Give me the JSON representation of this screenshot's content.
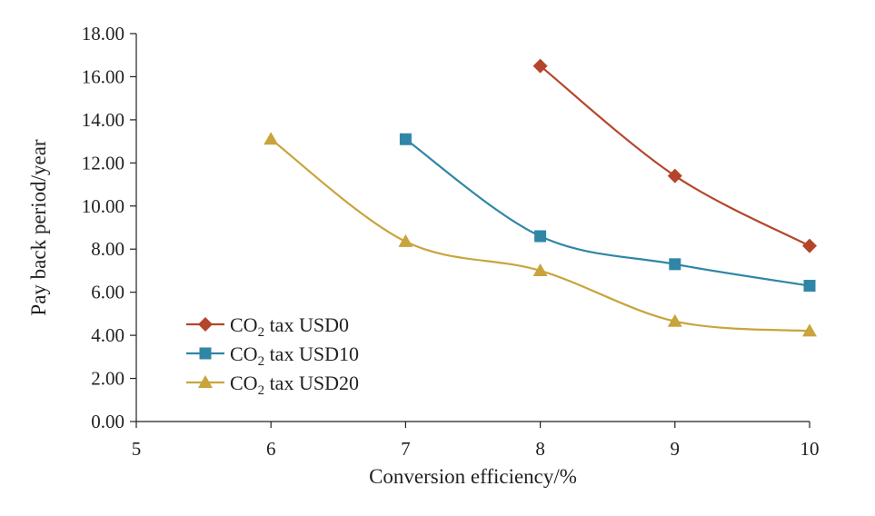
{
  "chart_data": {
    "type": "line",
    "title": "",
    "xlabel": "Conversion efficiency/%",
    "ylabel": "Pay back period/year",
    "xlim": [
      5,
      10
    ],
    "ylim": [
      0,
      18
    ],
    "x_ticks": [
      "5",
      "6",
      "7",
      "8",
      "9",
      "10"
    ],
    "y_ticks": [
      "0.00",
      "2.00",
      "4.00",
      "6.00",
      "8.00",
      "10.00",
      "12.00",
      "14.00",
      "16.00",
      "18.00"
    ],
    "legend_position": "lower-left",
    "series": [
      {
        "name": "CO2 tax USD0",
        "legend_prefix": "CO",
        "legend_sub": "2",
        "legend_suffix": " tax USD0",
        "color": "#b5452a",
        "marker": "diamond",
        "x": [
          8,
          9,
          10
        ],
        "values": [
          16.5,
          11.4,
          8.15
        ]
      },
      {
        "name": "CO2 tax USD10",
        "legend_prefix": "CO",
        "legend_sub": "2",
        "legend_suffix": " tax USD10",
        "color": "#2f86a6",
        "marker": "square",
        "x": [
          7,
          8,
          9,
          10
        ],
        "values": [
          13.1,
          8.6,
          7.3,
          6.3
        ]
      },
      {
        "name": "CO2 tax USD20",
        "legend_prefix": "CO",
        "legend_sub": "2",
        "legend_suffix": " tax USD20",
        "color": "#c9a43c",
        "marker": "triangle",
        "x": [
          6,
          7,
          8,
          9,
          10
        ],
        "values": [
          13.1,
          8.35,
          7.0,
          4.65,
          4.2
        ]
      }
    ]
  }
}
